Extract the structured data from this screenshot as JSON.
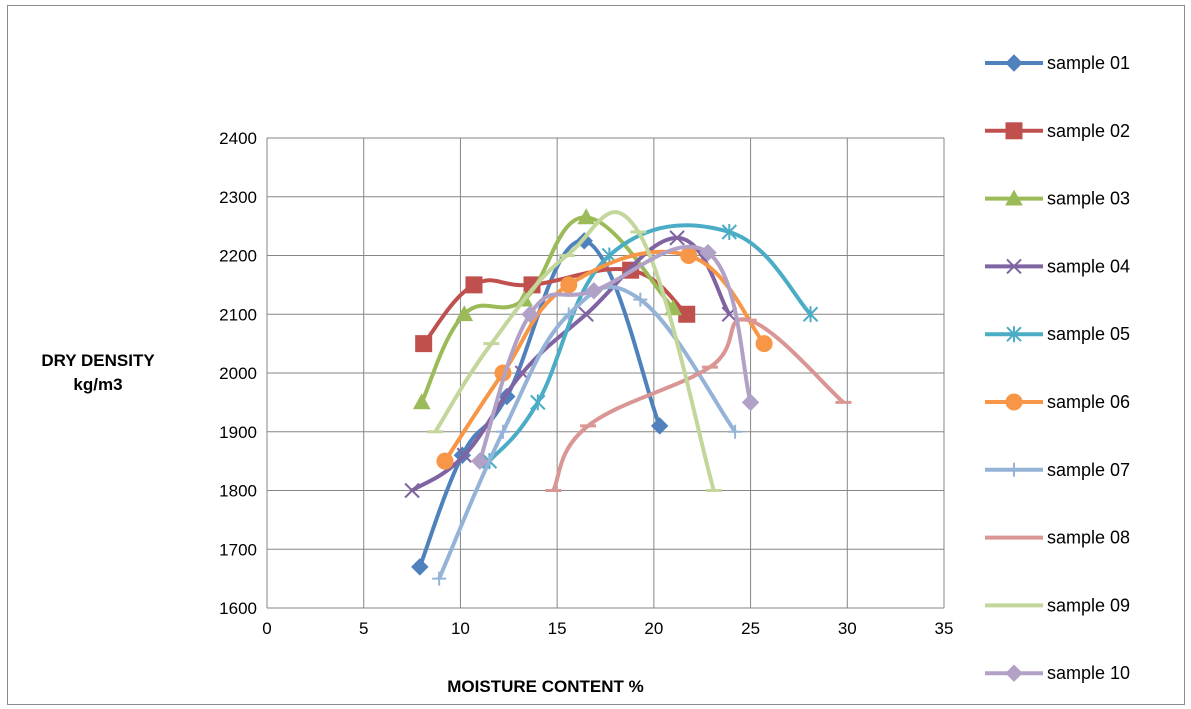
{
  "chart_data": {
    "type": "line",
    "title": "",
    "xlabel": "MOISTURE CONTENT %",
    "ylabel_lines": [
      "DRY DENSITY",
      "kg/m3"
    ],
    "xlim": [
      0,
      35
    ],
    "ylim": [
      1600,
      2400
    ],
    "x_ticks": [
      0,
      5,
      10,
      15,
      20,
      25,
      30,
      35
    ],
    "y_ticks": [
      1600,
      1700,
      1800,
      1900,
      2000,
      2100,
      2200,
      2300,
      2400
    ],
    "grid": true,
    "legend_position": "right",
    "series": [
      {
        "name": "sample 01",
        "color": "#4f81bd",
        "marker": "diamond",
        "x": [
          7.9,
          10.1,
          12.4,
          16.4,
          20.3
        ],
        "y": [
          1670,
          1860,
          1960,
          2225,
          1910
        ]
      },
      {
        "name": "sample 02",
        "color": "#c0504d",
        "marker": "square",
        "x": [
          8.1,
          10.7,
          13.7,
          18.8,
          21.7
        ],
        "y": [
          2050,
          2150,
          2150,
          2175,
          2100
        ]
      },
      {
        "name": "sample 03",
        "color": "#9bbb59",
        "marker": "triangle",
        "x": [
          8.0,
          10.2,
          13.3,
          16.5,
          21.0
        ],
        "y": [
          1950,
          2100,
          2125,
          2265,
          2110
        ]
      },
      {
        "name": "sample 04",
        "color": "#8064a2",
        "marker": "x",
        "x": [
          7.5,
          10.2,
          13.2,
          16.5,
          21.2,
          23.9
        ],
        "y": [
          1800,
          1860,
          2000,
          2100,
          2230,
          2100
        ]
      },
      {
        "name": "sample 05",
        "color": "#4bacc6",
        "marker": "asterisk",
        "x": [
          11.5,
          14.0,
          17.7,
          23.9,
          28.1
        ],
        "y": [
          1850,
          1950,
          2200,
          2240,
          2100
        ]
      },
      {
        "name": "sample 06",
        "color": "#f79646",
        "marker": "circle",
        "x": [
          9.2,
          12.2,
          15.6,
          21.8,
          25.7
        ],
        "y": [
          1850,
          2000,
          2150,
          2200,
          2050
        ]
      },
      {
        "name": "sample 07",
        "color": "#95b3d7",
        "marker": "plus",
        "x": [
          8.9,
          12.2,
          15.6,
          19.3,
          24.2
        ],
        "y": [
          1650,
          1900,
          2100,
          2125,
          1900
        ]
      },
      {
        "name": "sample 08",
        "color": "#d99694",
        "marker": "dash",
        "x": [
          14.8,
          16.6,
          22.9,
          24.9,
          29.8
        ],
        "y": [
          1800,
          1910,
          2010,
          2090,
          1950
        ]
      },
      {
        "name": "sample 09",
        "color": "#c3d69b",
        "marker": "dash",
        "x": [
          8.7,
          11.6,
          15.5,
          19.2,
          23.1
        ],
        "y": [
          1900,
          2050,
          2200,
          2240,
          1800
        ]
      },
      {
        "name": "sample 10",
        "color": "#b2a1c7",
        "marker": "diamond",
        "x": [
          11.0,
          13.6,
          16.9,
          22.8,
          25.0
        ],
        "y": [
          1850,
          2100,
          2140,
          2205,
          1950
        ]
      }
    ]
  }
}
